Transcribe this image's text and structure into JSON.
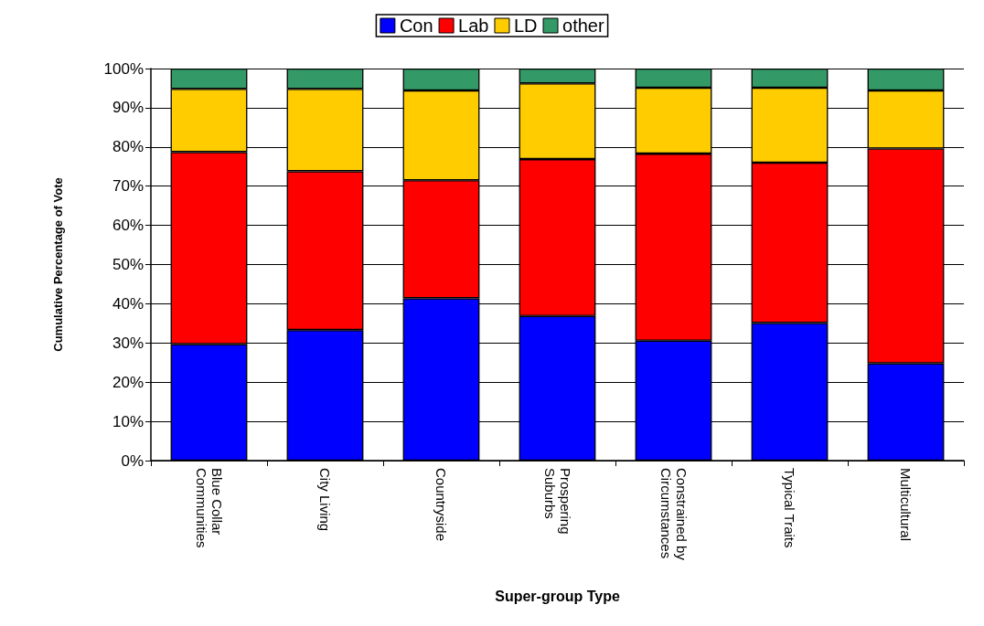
{
  "chart_data": {
    "type": "bar",
    "stacked": true,
    "xlabel": "Super-group Type",
    "ylabel": "Cumulative Percentage of Vote",
    "categories": [
      "Blue Collar Communities",
      "City Living",
      "Countryside",
      "Prospering Suburbs",
      "Constrained by Circumstances",
      "Typical Traits",
      "Multicultural"
    ],
    "series": [
      {
        "name": "Con",
        "color": "#0000ff",
        "values": [
          29.7,
          33.3,
          41.4,
          36.9,
          30.6,
          35.1,
          24.8
        ]
      },
      {
        "name": "Lab",
        "color": "#ff0000",
        "values": [
          49.0,
          40.5,
          30.1,
          40.0,
          47.7,
          40.9,
          54.8
        ]
      },
      {
        "name": "LD",
        "color": "#ffcc00",
        "values": [
          16.1,
          21.0,
          22.9,
          19.3,
          16.8,
          19.1,
          14.8
        ]
      },
      {
        "name": "other",
        "color": "#339966",
        "values": [
          5.2,
          5.2,
          5.6,
          3.8,
          4.9,
          4.9,
          5.6
        ]
      }
    ],
    "ylim": [
      0,
      100
    ],
    "yticks": [
      {
        "value": 0,
        "label": "0%"
      },
      {
        "value": 10,
        "label": "10%"
      },
      {
        "value": 20,
        "label": "20%"
      },
      {
        "value": 30,
        "label": "30%"
      },
      {
        "value": 40,
        "label": "40%"
      },
      {
        "value": 50,
        "label": "50%"
      },
      {
        "value": 60,
        "label": "60%"
      },
      {
        "value": 70,
        "label": "70%"
      },
      {
        "value": 80,
        "label": "80%"
      },
      {
        "value": 90,
        "label": "90%"
      },
      {
        "value": 100,
        "label": "100%"
      }
    ],
    "grid": "y",
    "legend": "top"
  }
}
